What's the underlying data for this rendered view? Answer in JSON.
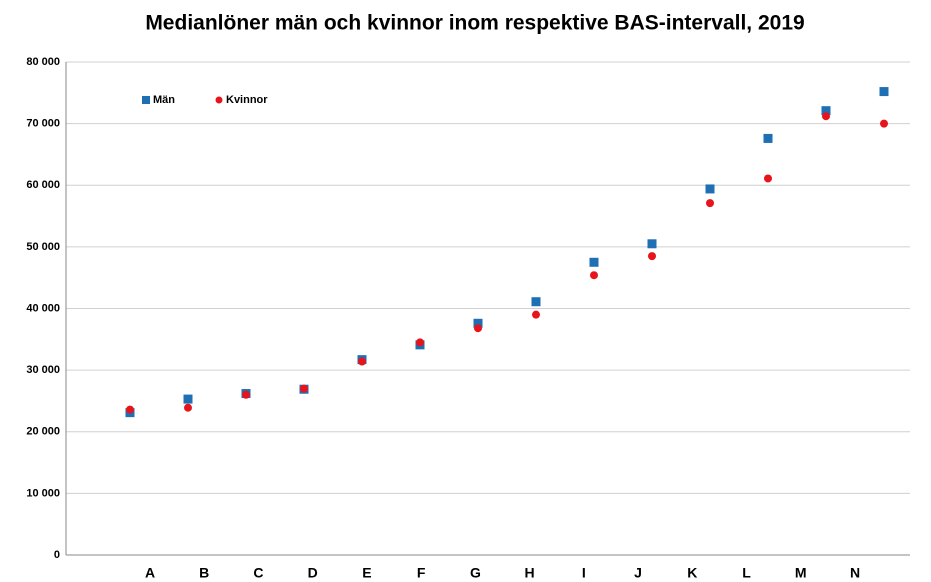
{
  "chart_data": {
    "type": "scatter",
    "title": "Medianlöner män och kvinnor inom respektive BAS-intervall, 2019",
    "categories": [
      "A",
      "B",
      "C",
      "D",
      "E",
      "F",
      "G",
      "H",
      "I",
      "J",
      "K",
      "L",
      "M",
      "N"
    ],
    "series": [
      {
        "name": "Män",
        "color": "#1f6fb5",
        "marker": "square",
        "values": [
          23100,
          25300,
          26200,
          26900,
          31700,
          34100,
          37600,
          41100,
          47500,
          50500,
          59400,
          67600,
          72100,
          75200
        ]
      },
      {
        "name": "Kvinnor",
        "color": "#e8141c",
        "marker": "circle",
        "values": [
          23600,
          23900,
          26000,
          27000,
          31400,
          34500,
          36800,
          39000,
          45400,
          48500,
          57100,
          61100,
          71200,
          70000
        ]
      }
    ],
    "ylim": [
      0,
      80000
    ],
    "yticks": [
      0,
      {
        "value": 10000,
        "label": "10 000"
      },
      {
        "value": 20000,
        "label": "20 000"
      },
      {
        "value": 30000,
        "label": "30 000"
      },
      {
        "value": 40000,
        "label": "40 000"
      },
      {
        "value": 50000,
        "label": "50 000"
      },
      {
        "value": 60000,
        "label": "60 000"
      },
      {
        "value": 70000,
        "label": "70 000"
      },
      {
        "value": 80000,
        "label": "80 000"
      }
    ],
    "grid": true,
    "legend": "top-left"
  }
}
